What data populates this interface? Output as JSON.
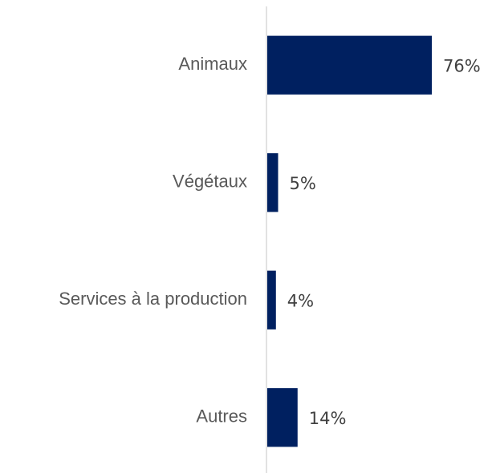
{
  "chart_data": {
    "type": "barh",
    "categories": [
      "Animaux",
      "Végétaux",
      "Services à la production",
      "Autres"
    ],
    "values": [
      76,
      5,
      4,
      14
    ],
    "value_labels": [
      "76%",
      "5%",
      "4%",
      "14%"
    ],
    "color": "#002060"
  }
}
